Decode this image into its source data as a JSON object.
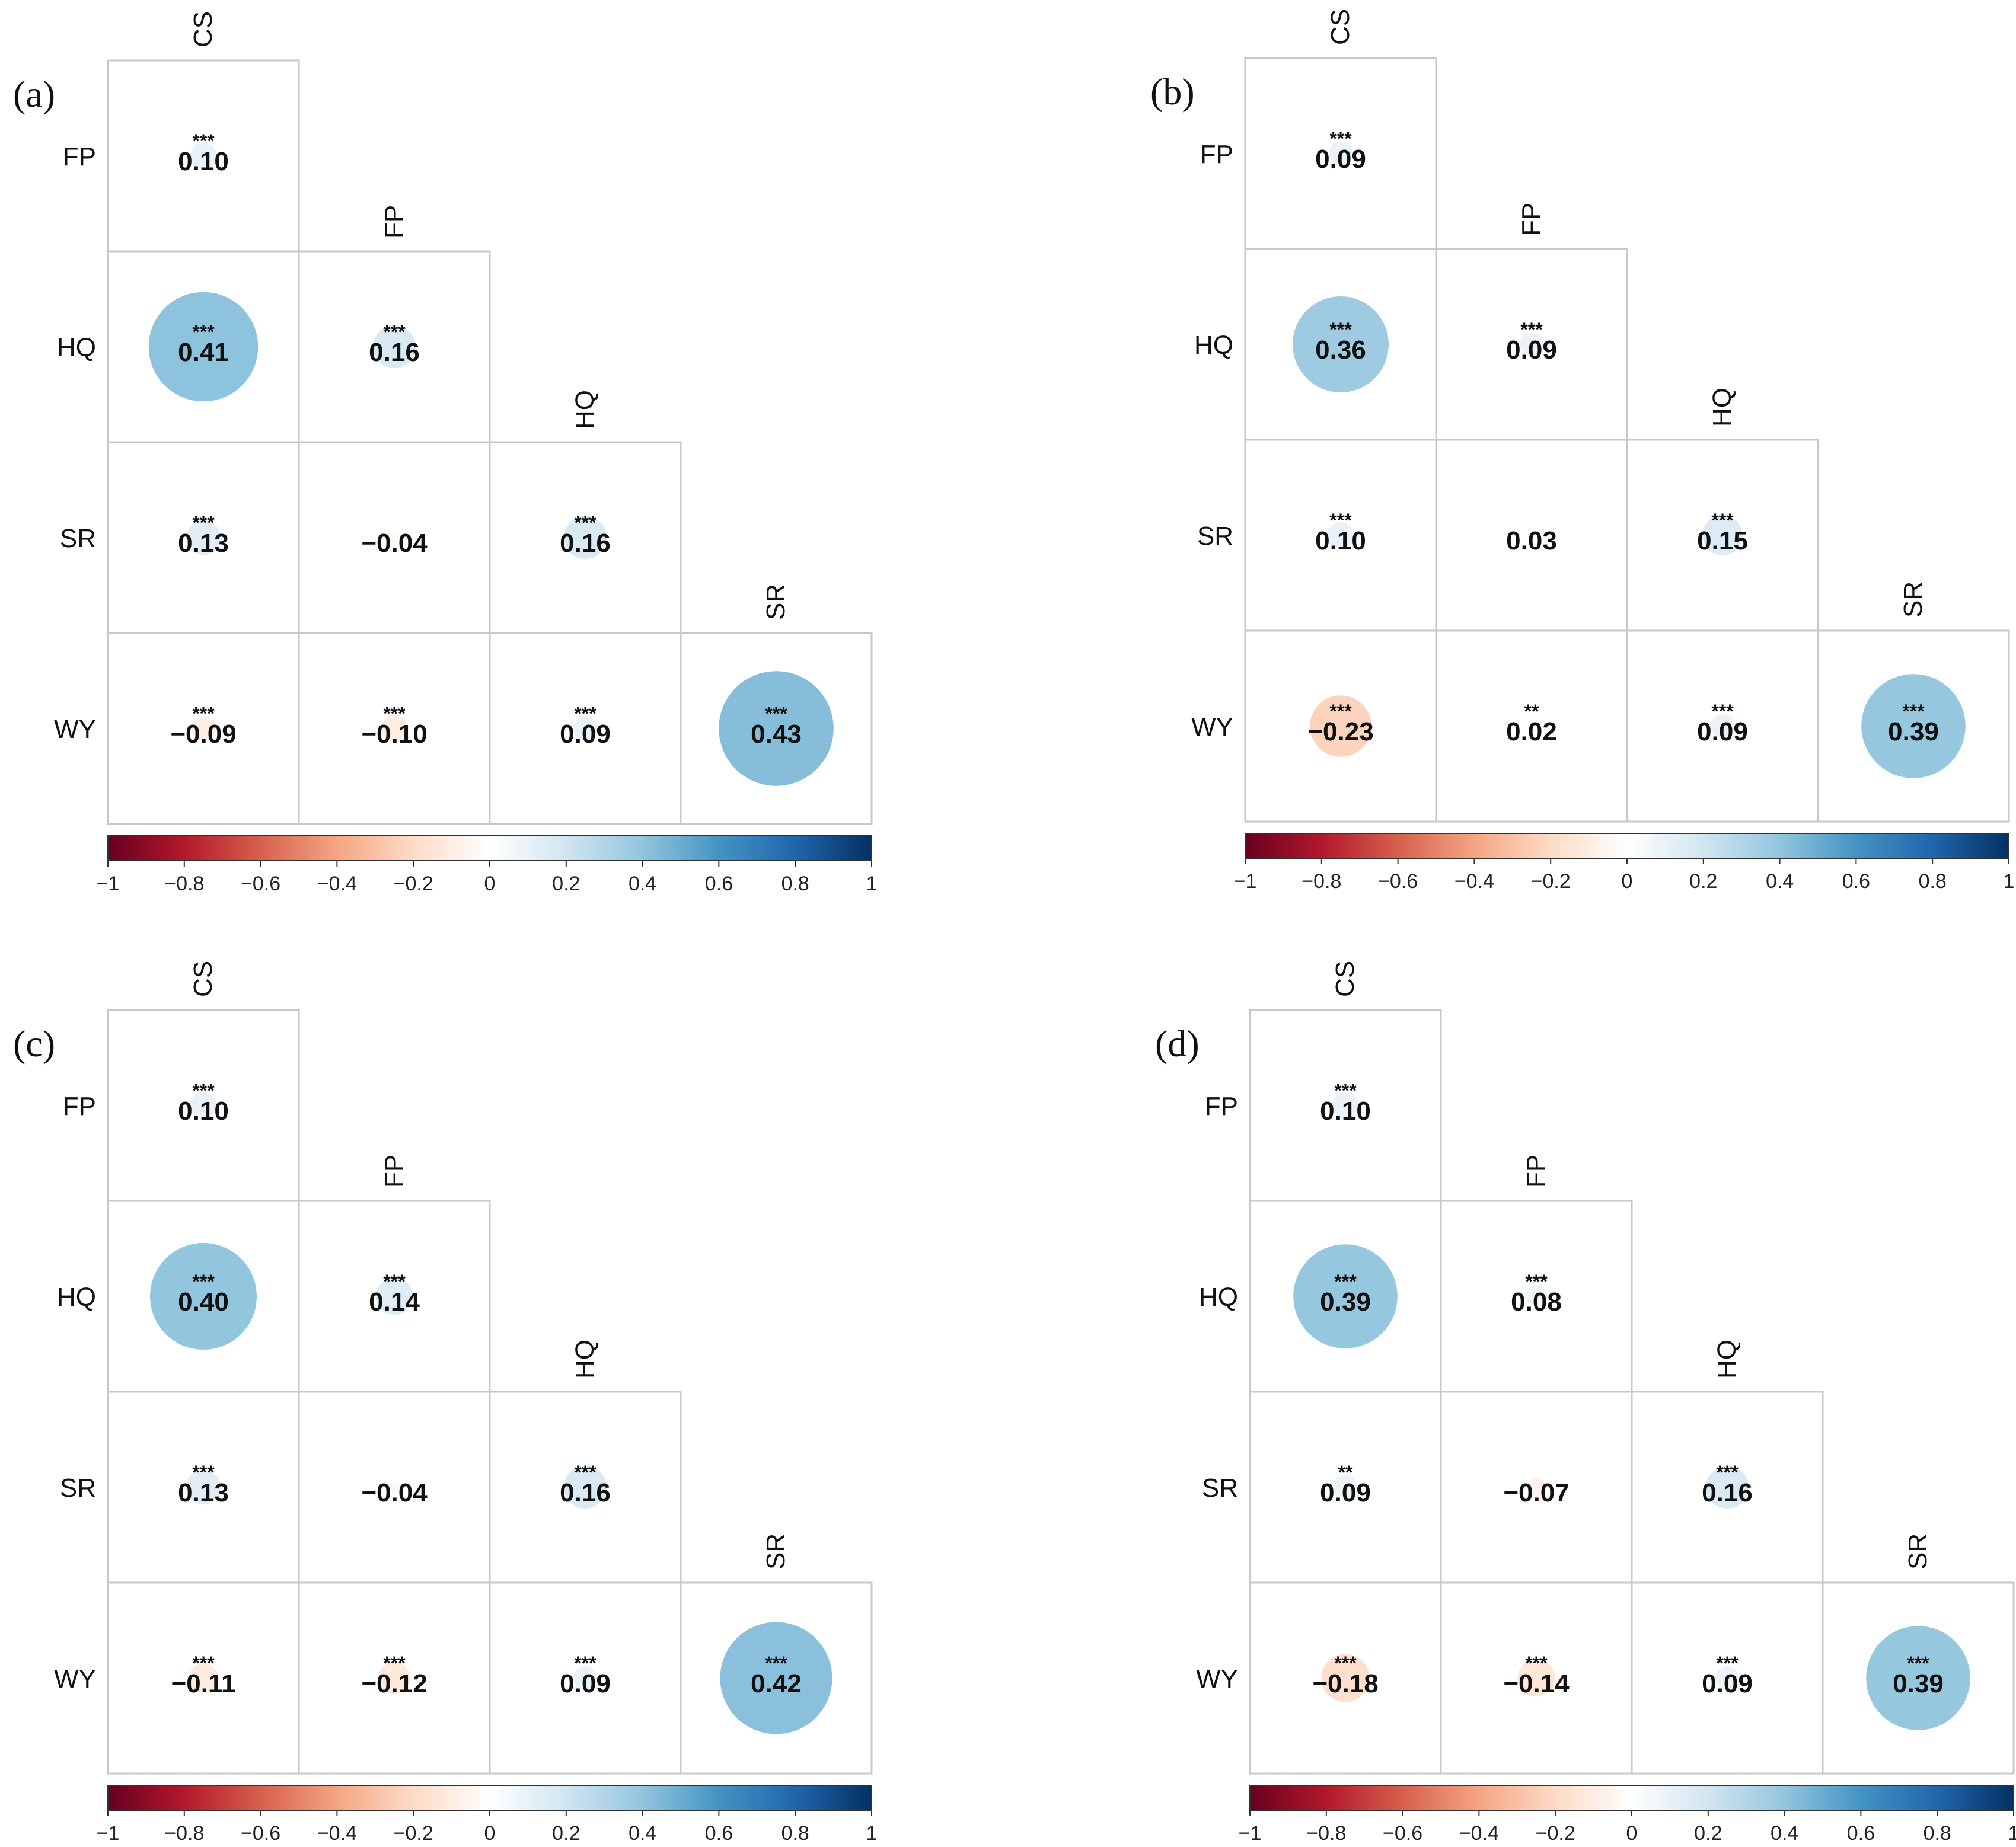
{
  "chart_data": [
    {
      "type": "heatmap",
      "panel_label": "(a)",
      "variables": [
        "CS",
        "FP",
        "HQ",
        "SR",
        "WY"
      ],
      "cells": [
        {
          "row": "FP",
          "col": "CS",
          "value": 0.1,
          "display": "0.10",
          "sig": "***"
        },
        {
          "row": "HQ",
          "col": "CS",
          "value": 0.41,
          "display": "0.41",
          "sig": "***"
        },
        {
          "row": "HQ",
          "col": "FP",
          "value": 0.16,
          "display": "0.16",
          "sig": "***"
        },
        {
          "row": "SR",
          "col": "CS",
          "value": 0.13,
          "display": "0.13",
          "sig": "***"
        },
        {
          "row": "SR",
          "col": "FP",
          "value": -0.04,
          "display": "−0.04",
          "sig": ""
        },
        {
          "row": "SR",
          "col": "HQ",
          "value": 0.16,
          "display": "0.16",
          "sig": "***"
        },
        {
          "row": "WY",
          "col": "CS",
          "value": -0.09,
          "display": "−0.09",
          "sig": "***"
        },
        {
          "row": "WY",
          "col": "FP",
          "value": -0.1,
          "display": "−0.10",
          "sig": "***"
        },
        {
          "row": "WY",
          "col": "HQ",
          "value": 0.09,
          "display": "0.09",
          "sig": "***"
        },
        {
          "row": "WY",
          "col": "SR",
          "value": 0.43,
          "display": "0.43",
          "sig": "***"
        }
      ]
    },
    {
      "type": "heatmap",
      "panel_label": "(b)",
      "variables": [
        "CS",
        "FP",
        "HQ",
        "SR",
        "WY"
      ],
      "cells": [
        {
          "row": "FP",
          "col": "CS",
          "value": 0.09,
          "display": "0.09",
          "sig": "***"
        },
        {
          "row": "HQ",
          "col": "CS",
          "value": 0.36,
          "display": "0.36",
          "sig": "***"
        },
        {
          "row": "HQ",
          "col": "FP",
          "value": 0.09,
          "display": "0.09",
          "sig": "***"
        },
        {
          "row": "SR",
          "col": "CS",
          "value": 0.1,
          "display": "0.10",
          "sig": "***"
        },
        {
          "row": "SR",
          "col": "FP",
          "value": 0.03,
          "display": "0.03",
          "sig": ""
        },
        {
          "row": "SR",
          "col": "HQ",
          "value": 0.15,
          "display": "0.15",
          "sig": "***"
        },
        {
          "row": "WY",
          "col": "CS",
          "value": -0.23,
          "display": "−0.23",
          "sig": "***"
        },
        {
          "row": "WY",
          "col": "FP",
          "value": 0.02,
          "display": "0.02",
          "sig": "**"
        },
        {
          "row": "WY",
          "col": "HQ",
          "value": 0.09,
          "display": "0.09",
          "sig": "***"
        },
        {
          "row": "WY",
          "col": "SR",
          "value": 0.39,
          "display": "0.39",
          "sig": "***"
        }
      ]
    },
    {
      "type": "heatmap",
      "panel_label": "(c)",
      "variables": [
        "CS",
        "FP",
        "HQ",
        "SR",
        "WY"
      ],
      "cells": [
        {
          "row": "FP",
          "col": "CS",
          "value": 0.1,
          "display": "0.10",
          "sig": "***"
        },
        {
          "row": "HQ",
          "col": "CS",
          "value": 0.4,
          "display": "0.40",
          "sig": "***"
        },
        {
          "row": "HQ",
          "col": "FP",
          "value": 0.14,
          "display": "0.14",
          "sig": "***"
        },
        {
          "row": "SR",
          "col": "CS",
          "value": 0.13,
          "display": "0.13",
          "sig": "***"
        },
        {
          "row": "SR",
          "col": "FP",
          "value": -0.04,
          "display": "−0.04",
          "sig": ""
        },
        {
          "row": "SR",
          "col": "HQ",
          "value": 0.16,
          "display": "0.16",
          "sig": "***"
        },
        {
          "row": "WY",
          "col": "CS",
          "value": -0.11,
          "display": "−0.11",
          "sig": "***"
        },
        {
          "row": "WY",
          "col": "FP",
          "value": -0.12,
          "display": "−0.12",
          "sig": "***"
        },
        {
          "row": "WY",
          "col": "HQ",
          "value": 0.09,
          "display": "0.09",
          "sig": "***"
        },
        {
          "row": "WY",
          "col": "SR",
          "value": 0.42,
          "display": "0.42",
          "sig": "***"
        }
      ]
    },
    {
      "type": "heatmap",
      "panel_label": "(d)",
      "variables": [
        "CS",
        "FP",
        "HQ",
        "SR",
        "WY"
      ],
      "cells": [
        {
          "row": "FP",
          "col": "CS",
          "value": 0.1,
          "display": "0.10",
          "sig": "***"
        },
        {
          "row": "HQ",
          "col": "CS",
          "value": 0.39,
          "display": "0.39",
          "sig": "***"
        },
        {
          "row": "HQ",
          "col": "FP",
          "value": 0.08,
          "display": "0.08",
          "sig": "***"
        },
        {
          "row": "SR",
          "col": "CS",
          "value": 0.09,
          "display": "0.09",
          "sig": "**"
        },
        {
          "row": "SR",
          "col": "FP",
          "value": -0.07,
          "display": "−0.07",
          "sig": ""
        },
        {
          "row": "SR",
          "col": "HQ",
          "value": 0.16,
          "display": "0.16",
          "sig": "***"
        },
        {
          "row": "WY",
          "col": "CS",
          "value": -0.18,
          "display": "−0.18",
          "sig": "***"
        },
        {
          "row": "WY",
          "col": "FP",
          "value": -0.14,
          "display": "−0.14",
          "sig": "***"
        },
        {
          "row": "WY",
          "col": "HQ",
          "value": 0.09,
          "display": "0.09",
          "sig": "***"
        },
        {
          "row": "WY",
          "col": "SR",
          "value": 0.39,
          "display": "0.39",
          "sig": "***"
        }
      ]
    }
  ],
  "colorbar": {
    "range": [
      -1,
      1
    ],
    "ticks": [
      -1,
      -0.8,
      -0.6,
      -0.4,
      -0.2,
      0,
      0.2,
      0.4,
      0.6,
      0.8,
      1
    ],
    "tick_labels": [
      "−1",
      "−0.8",
      "−0.6",
      "−0.4",
      "−0.2",
      "0",
      "0.2",
      "0.4",
      "0.6",
      "0.8",
      "1"
    ],
    "colors": [
      "#67001f",
      "#b2182b",
      "#d6604d",
      "#f4a582",
      "#fddbc7",
      "#ffffff",
      "#d1e5f0",
      "#92c5de",
      "#4393c3",
      "#2166ac",
      "#053061"
    ]
  }
}
